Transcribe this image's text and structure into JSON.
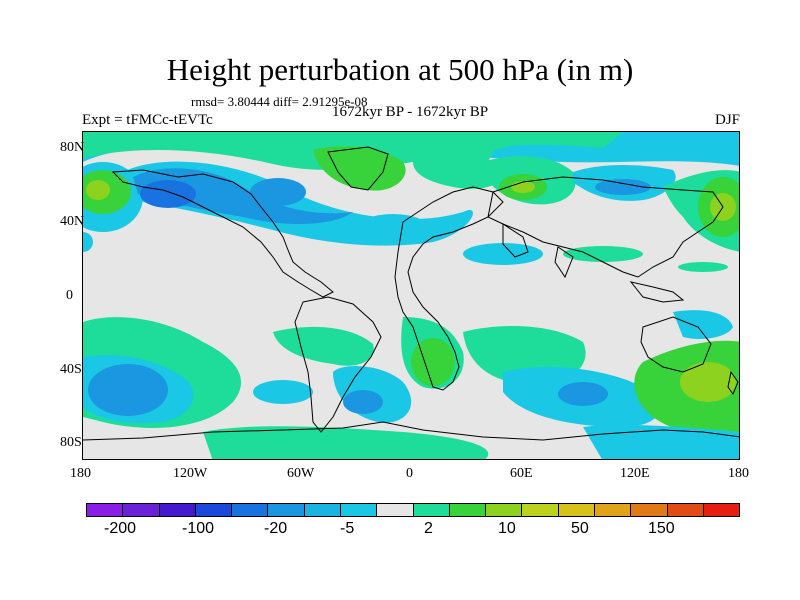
{
  "title": "Height perturbation at 500 hPa (in m)",
  "stats_text": "rmsd= 3.80444  diff= 2.91295e-08",
  "left_label": "Expt = tFMCc-tEVTc",
  "center_label": "1672kyr BP - 1672kyr BP",
  "right_label": "DJF",
  "map": {
    "projection": "cylindrical equidistant",
    "lon_range": [
      -180,
      180
    ],
    "lat_range": [
      -90,
      90
    ],
    "x_ticks": [
      "180",
      "120W",
      "60W",
      "0",
      "60E",
      "120E",
      "180"
    ],
    "y_ticks": [
      "80N",
      "40N",
      "0",
      "40S",
      "80S"
    ],
    "background_color": "#e6e6e6"
  },
  "colorbar": {
    "labels": [
      "-200",
      "-100",
      "-20",
      "-5",
      "2",
      "10",
      "50",
      "150"
    ],
    "colors": [
      "#8b1ee6",
      "#6b21d8",
      "#4419cf",
      "#1c48dc",
      "#1873e0",
      "#1a97e0",
      "#19b4e2",
      "#1ac8e6",
      "#e6e6e6",
      "#1edc9a",
      "#38d23a",
      "#8cd21e",
      "#bcd21c",
      "#d8c21a",
      "#e0a418",
      "#e07a16",
      "#e04c14",
      "#e61e12"
    ]
  }
}
